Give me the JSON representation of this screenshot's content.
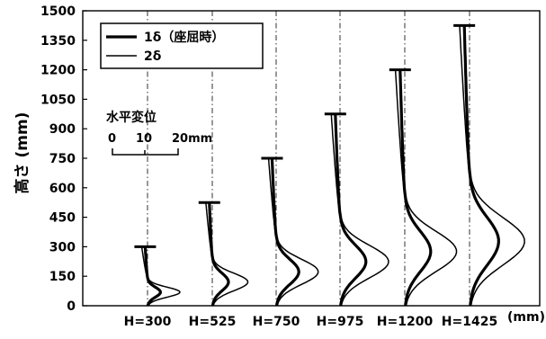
{
  "chart_data": {
    "type": "line",
    "ylabel": "高さ (mm)",
    "x_unit": "(mm)",
    "ylim": [
      0,
      1500
    ],
    "y_ticks": [
      "0",
      "150",
      "300",
      "450",
      "600",
      "750",
      "900",
      "1050",
      "1200",
      "1350",
      "1500"
    ],
    "categories": [
      "H=300",
      "H=525",
      "H=750",
      "H=975",
      "H=1200",
      "H=1425"
    ],
    "heights": [
      300,
      525,
      750,
      975,
      1200,
      1425
    ],
    "series": [
      {
        "name": "1δ（座屈時）",
        "peak_disp_mm": [
          4,
          5,
          7,
          8,
          8,
          9
        ]
      },
      {
        "name": "2δ",
        "peak_disp_mm": [
          10,
          11,
          13,
          15,
          16,
          17
        ]
      }
    ],
    "scale": {
      "title": "水平変位",
      "labels": [
        "0",
        "10",
        "20mm"
      ]
    },
    "grid": "vertical-dashed",
    "legend_position": "top-left"
  }
}
